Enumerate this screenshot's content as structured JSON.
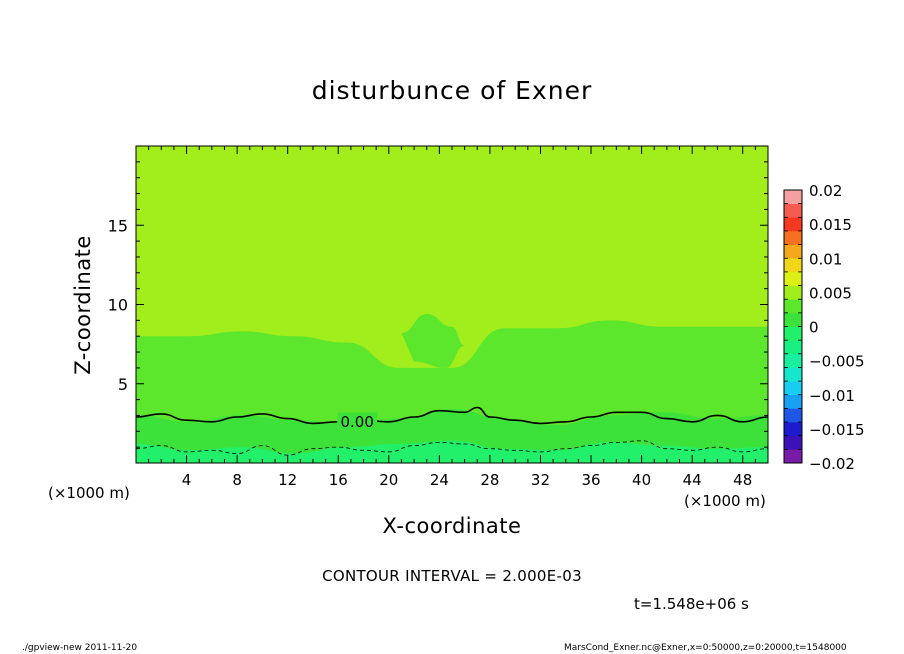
{
  "chart_data": {
    "type": "heatmap",
    "title": "disturbunce of Exner",
    "xlabel": "X-coordinate",
    "ylabel": "Z-coordinate",
    "x_unit": "(×1000 m)",
    "xlim": [
      0,
      50
    ],
    "ylim": [
      0,
      20
    ],
    "x_ticks": [
      4,
      8,
      12,
      16,
      20,
      24,
      28,
      32,
      36,
      40,
      44,
      48
    ],
    "y_ticks": [
      5,
      10,
      15
    ],
    "colorbar": {
      "levels": [
        -0.02,
        -0.018,
        -0.016,
        -0.014,
        -0.012,
        -0.01,
        -0.008,
        -0.006,
        -0.004,
        -0.002,
        0,
        0.002,
        0.004,
        0.006,
        0.008,
        0.01,
        0.012,
        0.014,
        0.016,
        0.018,
        0.02
      ],
      "tick_labels": [
        "0.02",
        "0.015",
        "0.01",
        "0.005",
        "0",
        "−0.005",
        "−0.01",
        "−0.015",
        "−0.02"
      ],
      "colors": [
        "#7a1aa8",
        "#3b12b8",
        "#1c1ccc",
        "#1f56e6",
        "#1aa0f2",
        "#18ccf2",
        "#18e6cc",
        "#18f0a0",
        "#1af082",
        "#22f06a",
        "#3ce23a",
        "#5ce62c",
        "#a2ee1c",
        "#dcf018",
        "#f0d818",
        "#f5a81c",
        "#f57020",
        "#f53820",
        "#f55c50",
        "#f5a0a0"
      ]
    },
    "regions": [
      {
        "level_range": [
          0.0,
          0.002
        ],
        "color": "#5ce62c",
        "z_top": [
          8,
          8,
          8.3,
          8,
          7.6,
          6,
          6,
          8.5,
          8.5,
          9,
          8.6,
          8.6,
          8.6
        ]
      },
      {
        "level_range": [
          -0.002,
          0.0
        ],
        "color": "#3ce23a",
        "z_top": [
          3,
          2.6,
          3,
          2.7,
          2.5,
          2.8,
          3.4,
          2.8,
          2.4,
          3,
          3.2,
          2.8,
          3
        ]
      },
      {
        "level_range": [
          -0.004,
          -0.002
        ],
        "color": "#22f06a",
        "z_top": [
          1.2,
          0.8,
          1,
          0.6,
          1,
          1.2,
          1.4,
          0.9,
          0.8,
          1.3,
          1.1,
          0.9,
          1
        ]
      }
    ],
    "contours": [
      {
        "level": 0.0,
        "label": "0.00",
        "style": "solid",
        "x": [
          0,
          2,
          4,
          6,
          8,
          10,
          12,
          14,
          16,
          18,
          20,
          22,
          24,
          26,
          27,
          28,
          30,
          32,
          34,
          36,
          38,
          40,
          42,
          44,
          46,
          48,
          50
        ],
        "z": [
          2.9,
          3.1,
          2.7,
          2.6,
          2.9,
          3.1,
          2.8,
          2.5,
          2.6,
          2.7,
          2.6,
          2.9,
          3.3,
          3.2,
          3.5,
          2.9,
          2.7,
          2.5,
          2.6,
          2.9,
          3.2,
          3.2,
          2.8,
          2.6,
          3.0,
          2.6,
          2.9
        ]
      },
      {
        "level": -0.002,
        "label": "",
        "style": "dashed",
        "x": [
          0,
          2,
          4,
          6,
          8,
          10,
          12,
          14,
          16,
          18,
          20,
          22,
          24,
          26,
          28,
          30,
          32,
          34,
          36,
          38,
          40,
          42,
          44,
          46,
          48,
          50
        ],
        "z": [
          0.9,
          1.1,
          0.7,
          0.8,
          0.6,
          1.1,
          0.5,
          0.9,
          1.0,
          0.8,
          0.7,
          1.1,
          1.3,
          1.2,
          0.9,
          0.8,
          0.7,
          0.9,
          1.1,
          1.3,
          1.4,
          0.9,
          0.8,
          1.0,
          0.7,
          0.9
        ]
      }
    ]
  },
  "contour_interval": "CONTOUR INTERVAL = 2.000E-03",
  "time_label": "t=1.548e+06 s",
  "footer_left": "./gpview-new   2011-11-20",
  "footer_right": "MarsCond_Exner.nc@Exner,x=0:50000,z=0:20000,t=1548000"
}
